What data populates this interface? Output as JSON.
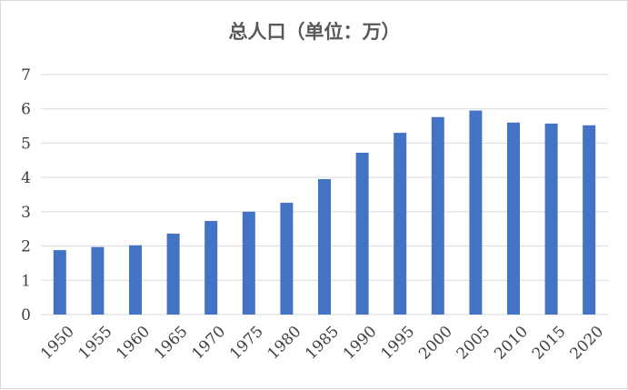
{
  "chart_data": {
    "type": "bar",
    "title": "总人口（单位：万）",
    "xlabel": "",
    "ylabel": "",
    "categories": [
      "1950",
      "1955",
      "1960",
      "1965",
      "1970",
      "1975",
      "1980",
      "1985",
      "1990",
      "1995",
      "2000",
      "2005",
      "2010",
      "2015",
      "2020"
    ],
    "values": [
      1.88,
      1.97,
      2.02,
      2.36,
      2.73,
      3.0,
      3.26,
      3.95,
      4.72,
      5.3,
      5.76,
      5.95,
      5.6,
      5.57,
      5.52
    ],
    "ylim": [
      0,
      7
    ],
    "yticks": [
      "0",
      "1",
      "2",
      "3",
      "4",
      "5",
      "6",
      "7"
    ],
    "grid": true,
    "bar_color": "#4472c4",
    "grid_color": "#d9d9d9",
    "legend": "none"
  }
}
